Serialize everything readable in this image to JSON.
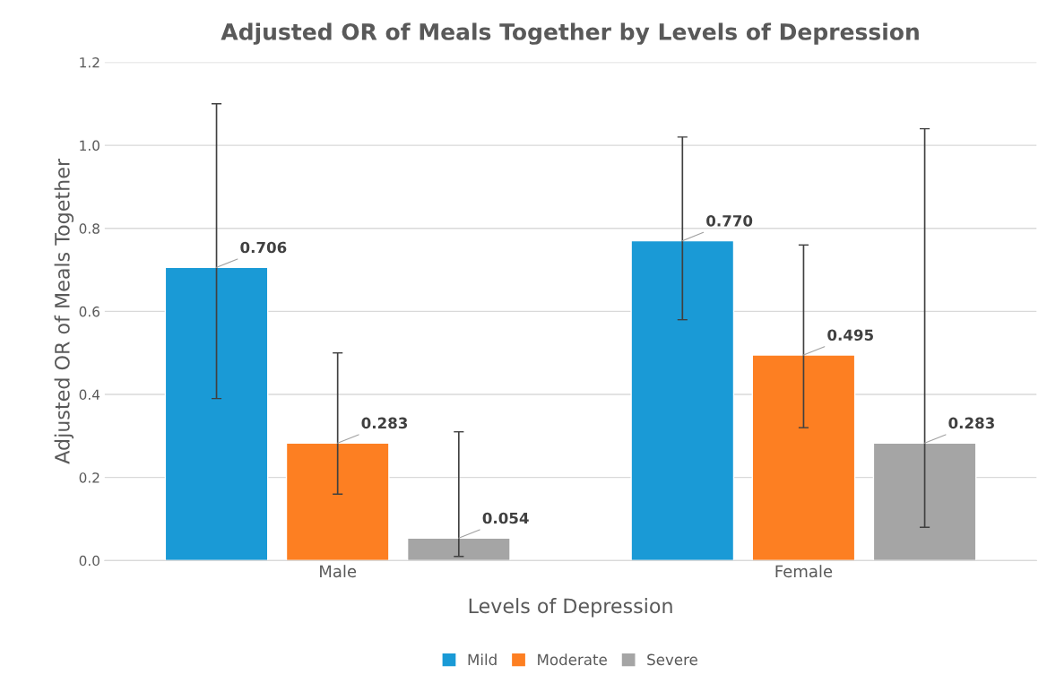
{
  "chart_data": {
    "type": "bar",
    "title": "Adjusted OR of Meals Together by Levels of Depression",
    "xlabel": "Levels of Depression",
    "ylabel": "Adjusted OR of Meals Together",
    "categories": [
      "Male",
      "Female"
    ],
    "series": [
      {
        "name": "Mild",
        "color": "#1a9ad6",
        "values": [
          0.706,
          0.77
        ],
        "value_labels": [
          "0.706",
          "0.770"
        ],
        "errors": [
          [
            0.39,
            1.1
          ],
          [
            0.58,
            1.02
          ]
        ]
      },
      {
        "name": "Moderate",
        "color": "#fd7f22",
        "values": [
          0.283,
          0.495
        ],
        "value_labels": [
          "0.283",
          "0.495"
        ],
        "errors": [
          [
            0.16,
            0.5
          ],
          [
            0.32,
            0.76
          ]
        ]
      },
      {
        "name": "Severe",
        "color": "#a5a5a5",
        "values": [
          0.054,
          0.283
        ],
        "value_labels": [
          "0.054",
          "0.283"
        ],
        "errors": [
          [
            0.01,
            0.31
          ],
          [
            0.08,
            1.04
          ]
        ]
      }
    ],
    "ylim": [
      0,
      1.2
    ],
    "yticks": [
      {
        "value": 0,
        "label": "0.0"
      },
      {
        "value": 0.2,
        "label": "0.2"
      },
      {
        "value": 0.4,
        "label": "0.4"
      },
      {
        "value": 0.6,
        "label": "0.6"
      },
      {
        "value": 0.8,
        "label": "0.8"
      },
      {
        "value": 1.0,
        "label": "1.0"
      },
      {
        "value": 1.2,
        "label": "1.2"
      }
    ],
    "grid": "y",
    "legend": "bottom"
  }
}
